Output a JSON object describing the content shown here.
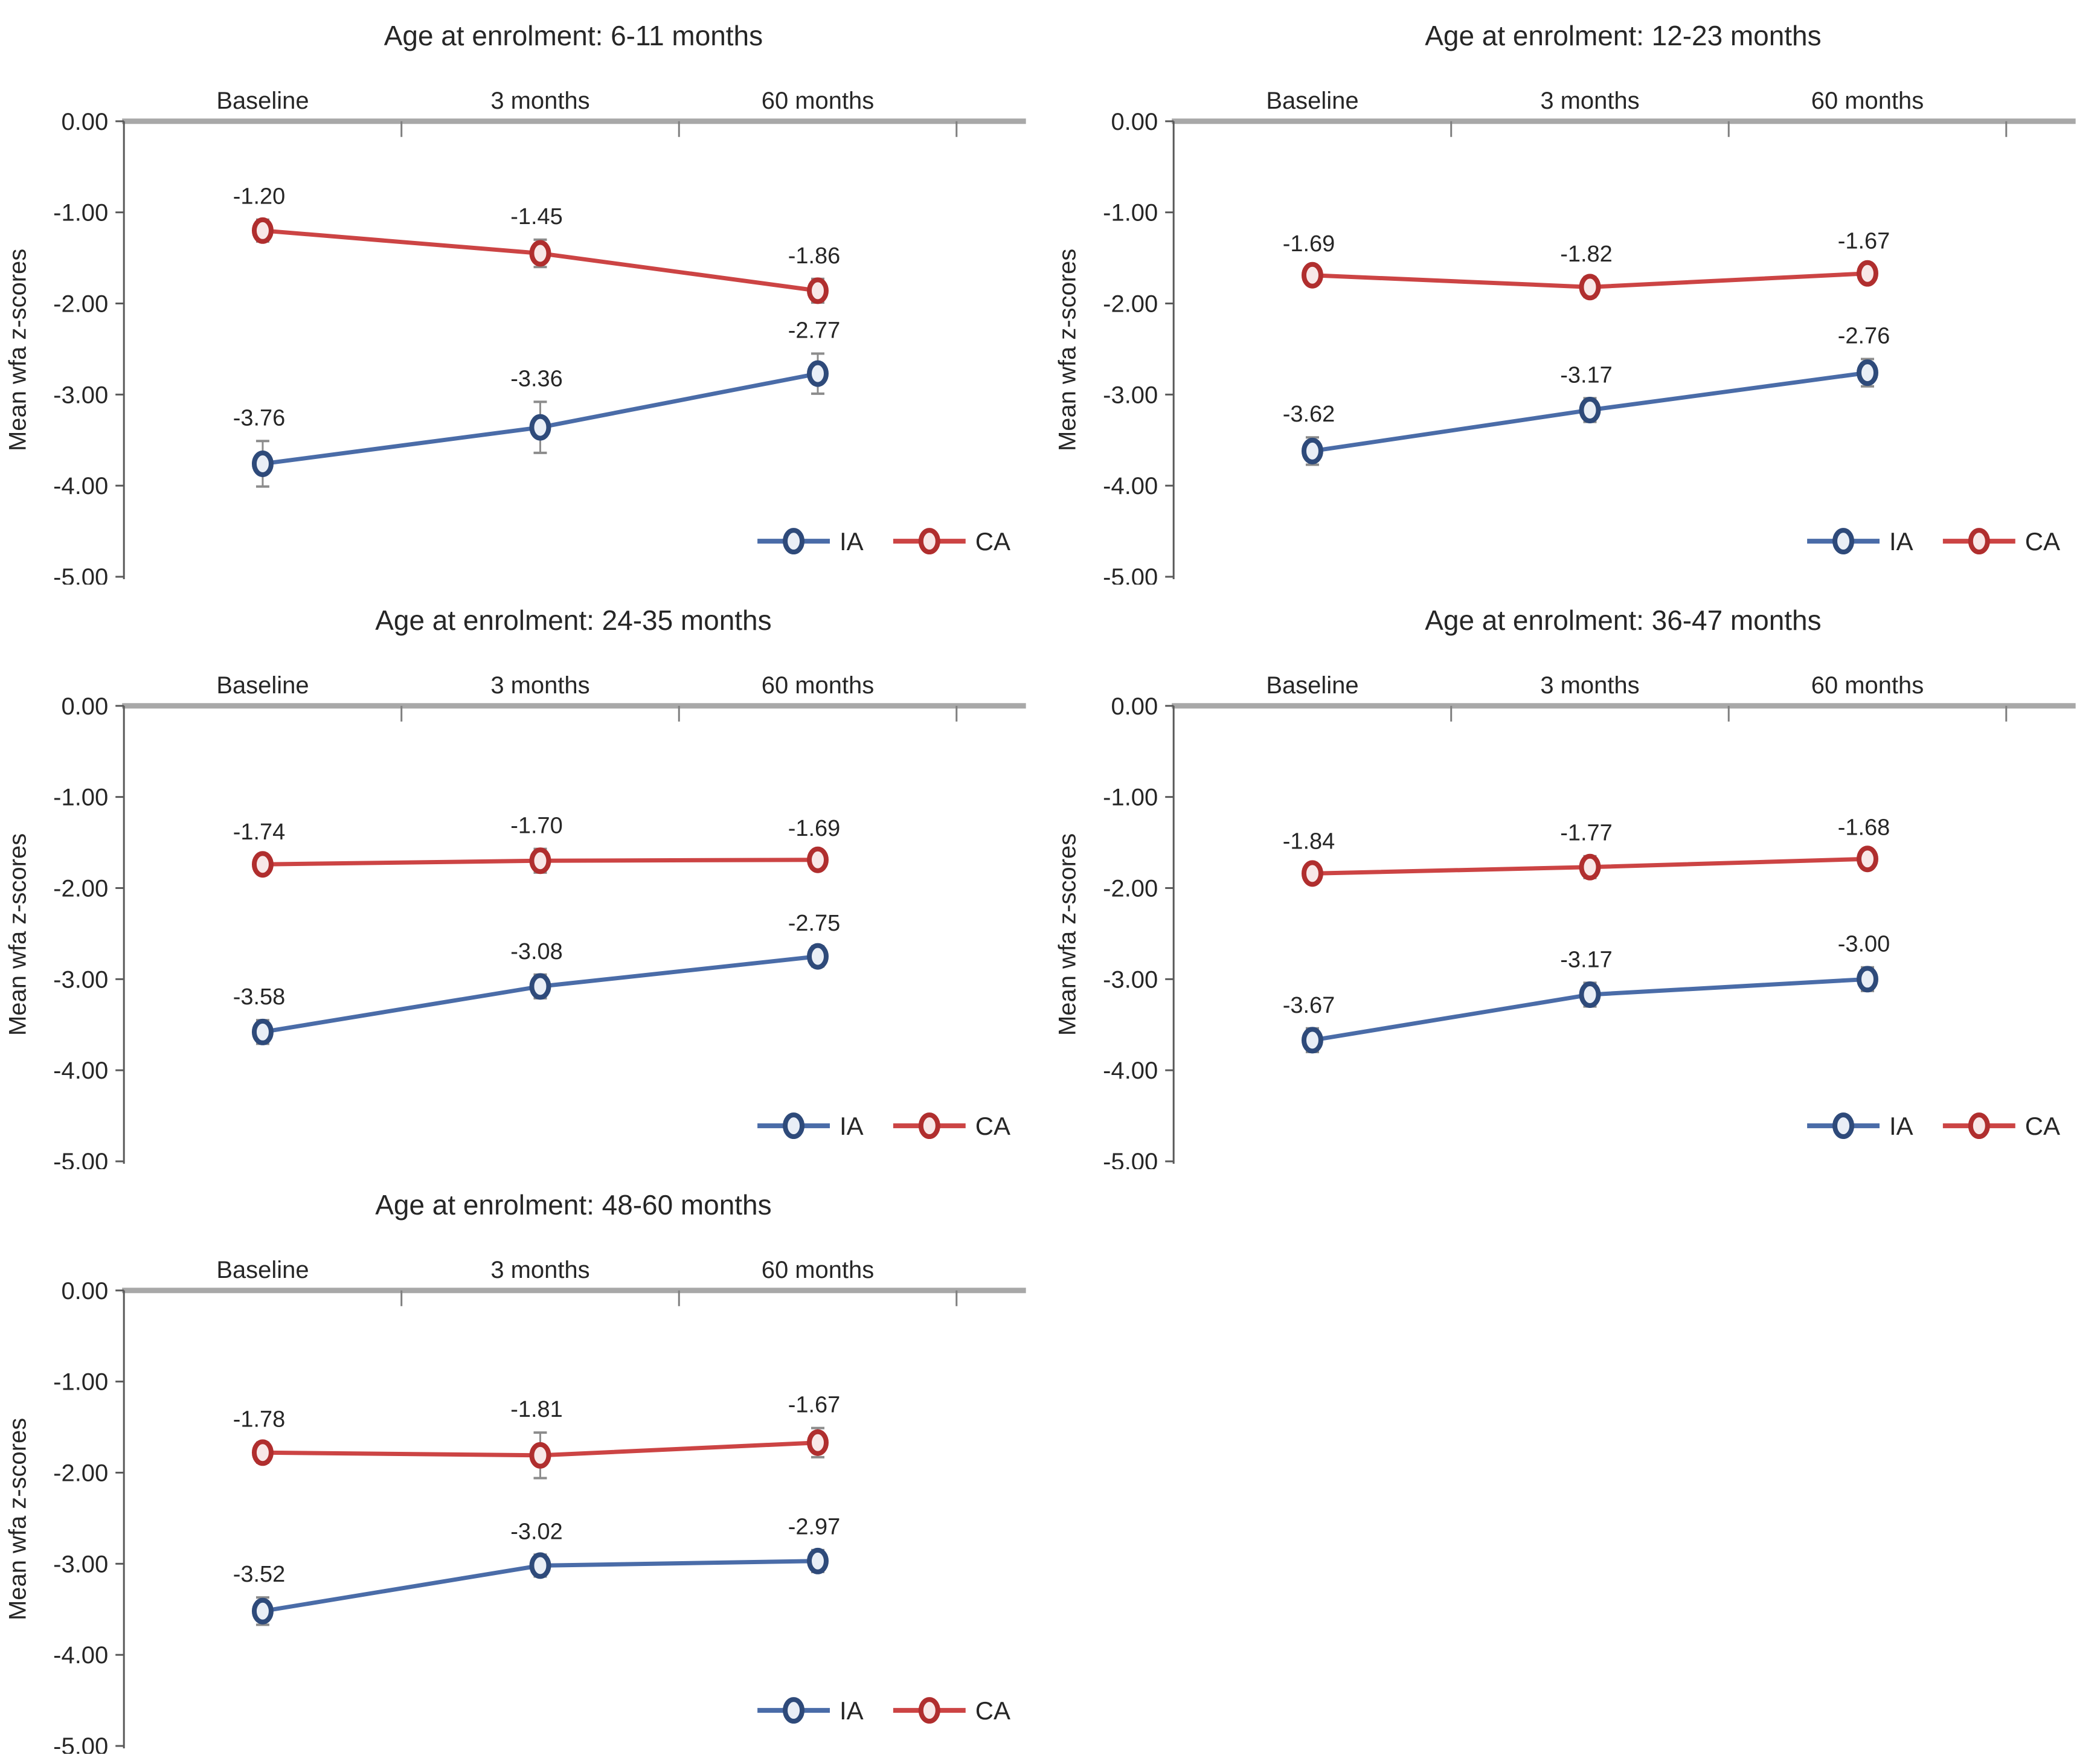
{
  "figure": {
    "ylabel": "Mean wfa z-scores",
    "categories": [
      "Baseline",
      "3 months",
      "60 months"
    ],
    "y_tick_labels": [
      "0.00",
      "-1.00",
      "-2.00",
      "-3.00",
      "-4.00",
      "-5.00"
    ],
    "legend": [
      "IA",
      "CA"
    ],
    "colors": {
      "ia_line": "#4a6ca8",
      "ia_ring": "#2e4a7a",
      "ia_fill": "#e9eef6",
      "ca_line": "#cc4444",
      "ca_ring": "#b02e2e",
      "ca_fill": "#f8e7e7",
      "zero_axis": "#a8a8a8",
      "y_axis": "#595959",
      "x_tick": "#7f7f7f",
      "error_bar": "#8c8c8c",
      "text": "#262626"
    }
  },
  "chart_data": [
    {
      "type": "line",
      "title": "Age at enrolment: 6-11 months",
      "categories": [
        "Baseline",
        "3 months",
        "60 months"
      ],
      "xlabel": "",
      "ylabel": "Mean wfa z-scores",
      "ylim": [
        0,
        -5
      ],
      "grid": false,
      "legend_position": "bottom-right-inside",
      "series": [
        {
          "name": "IA",
          "values": [
            -3.76,
            -3.36,
            -2.77
          ],
          "err": [
            0.25,
            0.28,
            0.22
          ]
        },
        {
          "name": "CA",
          "values": [
            -1.2,
            -1.45,
            -1.86
          ],
          "err": [
            0.12,
            0.15,
            0.13
          ]
        }
      ]
    },
    {
      "type": "line",
      "title": "Age at enrolment: 12-23 months",
      "categories": [
        "Baseline",
        "3 months",
        "60 months"
      ],
      "xlabel": "",
      "ylabel": "Mean wfa z-scores",
      "ylim": [
        0,
        -5
      ],
      "grid": false,
      "legend_position": "bottom-right-inside",
      "series": [
        {
          "name": "IA",
          "values": [
            -3.62,
            -3.17,
            -2.76
          ],
          "err": [
            0.15,
            0.13,
            0.15
          ]
        },
        {
          "name": "CA",
          "values": [
            -1.69,
            -1.82,
            -1.67
          ],
          "err": [
            0.09,
            0.11,
            0.1
          ]
        }
      ]
    },
    {
      "type": "line",
      "title": "Age at enrolment: 24-35 months",
      "categories": [
        "Baseline",
        "3 months",
        "60 months"
      ],
      "xlabel": "",
      "ylabel": "Mean wfa z-scores",
      "ylim": [
        0,
        -5
      ],
      "grid": false,
      "legend_position": "bottom-right-inside",
      "series": [
        {
          "name": "IA",
          "values": [
            -3.58,
            -3.08,
            -2.75
          ],
          "err": [
            0.13,
            0.13,
            0.11
          ]
        },
        {
          "name": "CA",
          "values": [
            -1.74,
            -1.7,
            -1.69
          ],
          "err": [
            0.1,
            0.13,
            0.09
          ]
        }
      ]
    },
    {
      "type": "line",
      "title": "Age at enrolment: 36-47 months",
      "categories": [
        "Baseline",
        "3 months",
        "60 months"
      ],
      "xlabel": "",
      "ylabel": "Mean wfa z-scores",
      "ylim": [
        0,
        -5
      ],
      "grid": false,
      "legend_position": "bottom-right-inside",
      "series": [
        {
          "name": "IA",
          "values": [
            -3.67,
            -3.17,
            -3.0
          ],
          "err": [
            0.13,
            0.13,
            0.13
          ]
        },
        {
          "name": "CA",
          "values": [
            -1.84,
            -1.77,
            -1.68
          ],
          "err": [
            0.1,
            0.12,
            0.09
          ]
        }
      ]
    },
    {
      "type": "line",
      "title": "Age at enrolment: 48-60 months",
      "categories": [
        "Baseline",
        "3 months",
        "60 months"
      ],
      "xlabel": "",
      "ylabel": "Mean wfa z-scores",
      "ylim": [
        0,
        -5
      ],
      "grid": false,
      "legend_position": "bottom-right-inside",
      "series": [
        {
          "name": "IA",
          "values": [
            -3.52,
            -3.02,
            -2.97
          ],
          "err": [
            0.15,
            0.12,
            0.12
          ]
        },
        {
          "name": "CA",
          "values": [
            -1.78,
            -1.81,
            -1.67
          ],
          "err": [
            0.11,
            0.25,
            0.16
          ]
        }
      ]
    }
  ]
}
